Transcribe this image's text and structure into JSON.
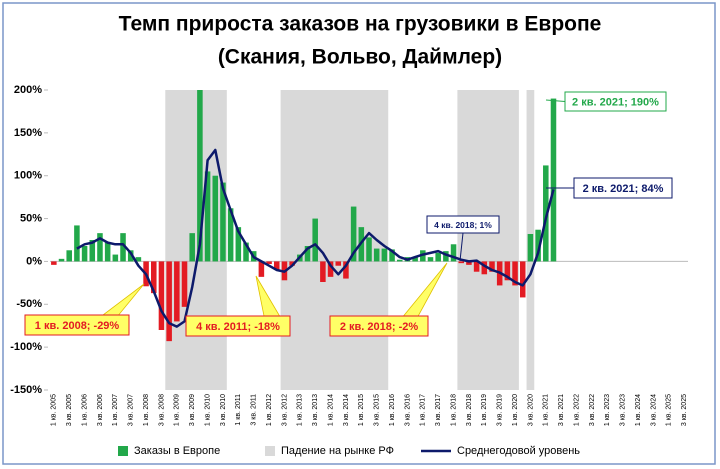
{
  "chart_data": {
    "type": "bar_line",
    "title": "Темп прироста заказов на грузовики в Европе",
    "subtitle": "(Скания, Вольво, Даймлер)",
    "categories": [
      "1 кв. 2005",
      null,
      "3 кв. 2005",
      null,
      "1 кв. 2006",
      null,
      "3 кв. 2006",
      null,
      "1 кв. 2007",
      null,
      "3 кв. 2007",
      null,
      "1 кв. 2008",
      null,
      "3 кв. 2008",
      null,
      "1 кв. 2009",
      null,
      "3 кв. 2009",
      null,
      "1 кв. 2010",
      null,
      "3 кв. 2010",
      null,
      "1 кв. 2011",
      null,
      "3 кв. 2011",
      null,
      "1 кв. 2012",
      null,
      "3 кв. 2012",
      null,
      "1 кв. 2013",
      null,
      "3 кв. 2013",
      null,
      "1 кв. 2014",
      null,
      "3 кв. 2014",
      null,
      "1 кв. 2015",
      null,
      "3 кв. 2015",
      null,
      "1 кв. 2016",
      null,
      "3 кв. 2016",
      null,
      "1 кв. 2017",
      null,
      "3 кв. 2017",
      null,
      "1 кв. 2018",
      null,
      "3 кв. 2018",
      null,
      "1 кв. 2019",
      null,
      "3 кв. 2019",
      null,
      "1 кв. 2020",
      null,
      "3 кв. 2020",
      null,
      "1 кв. 2021",
      null,
      "3 кв. 2021",
      null,
      "1 кв. 2022",
      null,
      "3 кв. 2022",
      null,
      "1 кв. 2023",
      null,
      "3 кв. 2023",
      null,
      "1 кв. 2024",
      null,
      "3 кв. 2024",
      null,
      "1 кв. 2025",
      null,
      "3 кв. 2025"
    ],
    "series": [
      {
        "name": "Заказы в Европе",
        "type": "bar",
        "color": "#22a84a",
        "negative_color": "#e31b23",
        "values": [
          -4,
          3,
          13,
          42,
          18,
          25,
          33,
          22,
          8,
          33,
          13,
          5,
          -29,
          -37,
          -80,
          -93,
          -70,
          -53,
          33,
          200,
          105,
          100,
          92,
          62,
          40,
          22,
          12,
          -18,
          -3,
          -10,
          -22,
          -5,
          8,
          18,
          50,
          -24,
          -18,
          -5,
          -20,
          64,
          40,
          28,
          15,
          15,
          14,
          2,
          5,
          5,
          13,
          5,
          10,
          12,
          20,
          -2,
          -4,
          -12,
          -15,
          -12,
          -28,
          -22,
          -28,
          -42,
          32,
          37,
          112,
          190,
          null,
          null,
          null,
          null,
          null,
          null,
          null,
          null,
          null,
          null,
          null,
          null,
          null,
          null,
          null,
          null,
          null
        ]
      },
      {
        "name": "Падение на рынке РФ",
        "type": "band",
        "color": "#d9d9d9",
        "periods": [
          [
            15,
            22
          ],
          [
            30,
            43
          ],
          [
            53,
            60
          ],
          [
            62,
            62
          ]
        ]
      },
      {
        "name": "Среднегодовой уровень",
        "type": "line",
        "color": "#0d1a6b",
        "values": [
          null,
          null,
          null,
          15,
          20,
          22,
          27,
          22,
          20,
          20,
          10,
          -5,
          -15,
          -35,
          -58,
          -72,
          -76,
          -70,
          -30,
          20,
          118,
          130,
          85,
          60,
          35,
          20,
          5,
          0,
          -5,
          -10,
          -12,
          -5,
          5,
          15,
          20,
          10,
          -5,
          -15,
          -5,
          10,
          22,
          33,
          25,
          18,
          12,
          5,
          2,
          5,
          8,
          10,
          12,
          8,
          5,
          2,
          0,
          1,
          -5,
          -10,
          -13,
          -18,
          -24,
          -28,
          -15,
          10,
          50,
          84,
          null,
          null,
          null,
          null,
          null,
          null,
          null,
          null,
          null,
          null,
          null,
          null,
          null,
          null,
          null,
          null,
          null
        ]
      }
    ],
    "annotations": [
      "1 кв. 2008; -29%",
      "4 кв. 2011; -18%",
      "2 кв. 2018; -2%",
      "4 кв. 2018; 1%",
      "2 кв. 2021; 190%",
      "2 кв. 2021; 84%"
    ],
    "ylim": [
      -150,
      200
    ],
    "yticks": [
      {
        "value": -150,
        "label": "-150%"
      },
      {
        "value": -100,
        "label": "-100%"
      },
      {
        "value": -50,
        "label": "-50%"
      },
      {
        "value": 0,
        "label": "0%"
      },
      {
        "value": 50,
        "label": "50%"
      },
      {
        "value": 100,
        "label": "100%"
      },
      {
        "value": 150,
        "label": "150%"
      },
      {
        "value": 200,
        "label": "200%"
      }
    ],
    "grid": false
  }
}
